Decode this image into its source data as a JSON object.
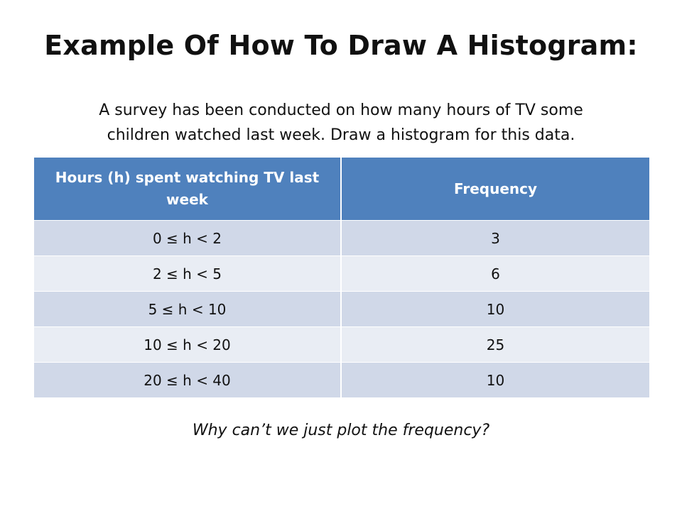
{
  "title": "Example Of How To Draw A Histogram:",
  "intro": {
    "line1": "A survey has been conducted on how many hours of TV some",
    "line2": "children watched last week. Draw a histogram for this data."
  },
  "table": {
    "headers": [
      "Hours (h) spent watching TV last week",
      "Frequency"
    ],
    "header_color": "#4f81bd",
    "row_colors": [
      "#d0d8e8",
      "#e9edf4"
    ],
    "rows": [
      {
        "hours": "0 ≤ h < 2",
        "frequency": "3"
      },
      {
        "hours": "2 ≤ h < 5",
        "frequency": "6"
      },
      {
        "hours": "5 ≤ h < 10",
        "frequency": "10"
      },
      {
        "hours": "10 ≤ h < 20",
        "frequency": "25"
      },
      {
        "hours": "20 ≤ h < 40",
        "frequency": "10"
      }
    ]
  },
  "question": "Why can’t we just plot the frequency?"
}
